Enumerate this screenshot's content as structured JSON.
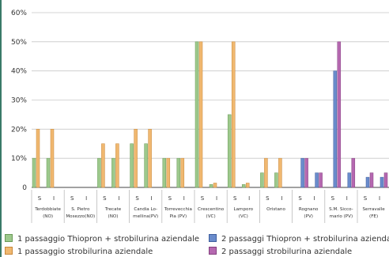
{
  "chart_data": {
    "type": "bar",
    "yticks": [
      "0",
      "10%",
      "20%",
      "30%",
      "40%",
      "50%",
      "60%"
    ],
    "ylim": [
      0,
      60
    ],
    "grid": true,
    "groups": [
      {
        "name": [
          "Terdobbiate",
          "(NO)"
        ],
        "sub": [
          "S",
          "I"
        ]
      },
      {
        "name": [
          "S. Pietro",
          "Mosezzo(NO)"
        ],
        "sub": [
          "S",
          "I"
        ]
      },
      {
        "name": [
          "Trecate",
          "(NO)"
        ],
        "sub": [
          "S",
          "I"
        ]
      },
      {
        "name": [
          "Candia Lo-",
          "mellina(PV)"
        ],
        "sub": [
          "S",
          "I"
        ]
      },
      {
        "name": [
          "Torrevecchia",
          "Pia (PV)"
        ],
        "sub": [
          "S",
          "I"
        ]
      },
      {
        "name": [
          "Crescentino",
          "(VC)"
        ],
        "sub": [
          "S",
          "I"
        ]
      },
      {
        "name": [
          "Lamporo",
          "(VC)"
        ],
        "sub": [
          "S",
          "I"
        ]
      },
      {
        "name": [
          "Oristano"
        ],
        "sub": [
          "S",
          "I"
        ]
      },
      {
        "name": [
          "Rognano",
          "(PV)"
        ],
        "sub": [
          "S",
          "I"
        ]
      },
      {
        "name": [
          "S.M. Sicco-",
          "mario (PV)"
        ],
        "sub": [
          "S",
          "I"
        ]
      },
      {
        "name": [
          "Serravalle",
          "(FE)"
        ],
        "sub": [
          "S",
          "I"
        ]
      }
    ],
    "series": [
      {
        "name": "1 passaggio Thiopron + strobilurina aziendale",
        "color": "#9dc98c",
        "border": "#6a9a58",
        "values": [
          10,
          0,
          10,
          15,
          10,
          50,
          25,
          5,
          0,
          0,
          0,
          10,
          0,
          10,
          15,
          10,
          1,
          1,
          5,
          0,
          0,
          0
        ]
      },
      {
        "name": "1 passaggio strobilurina aziendale",
        "color": "#f0b870",
        "border": "#c8883a",
        "values": [
          20,
          0,
          15,
          20,
          10,
          50,
          50,
          10,
          0,
          0,
          0,
          20,
          0,
          15,
          20,
          10,
          1.5,
          1.5,
          10,
          0,
          0,
          0
        ]
      },
      {
        "name": "2 passaggi Thiopron + strobilurina aziendale",
        "color": "#6a8ccc",
        "border": "#3e5e9e",
        "values": [
          0,
          0,
          0,
          0,
          0,
          0,
          0,
          0,
          10,
          40,
          3.5,
          0,
          0,
          0,
          0,
          0,
          0,
          0,
          0,
          5,
          5,
          3.5
        ]
      },
      {
        "name": "2 passaggi strobilurina aziendale",
        "color": "#b568b0",
        "border": "#854080",
        "values": [
          0,
          0,
          0,
          0,
          0,
          0,
          0,
          0,
          10,
          50,
          5,
          0,
          0,
          0,
          0,
          0,
          0,
          0,
          0,
          5,
          10,
          5
        ]
      }
    ],
    "bar_order": "series values are listed per group as [S of groups 1..11, I of groups 1..11]"
  },
  "legend": {
    "items": [
      {
        "label": "1 passaggio Thiopron + strobilurina aziendale",
        "color": "#9dc98c",
        "border": "#6a9a58"
      },
      {
        "label": "1 passaggio strobilurina aziendale",
        "color": "#f0b870",
        "border": "#c8883a"
      },
      {
        "label": "2 passaggi Thiopron + strobilurina aziendale",
        "color": "#6a8ccc",
        "border": "#3e5e9e"
      },
      {
        "label": "2 passaggi strobilurina aziendale",
        "color": "#b568b0",
        "border": "#854080"
      }
    ]
  }
}
